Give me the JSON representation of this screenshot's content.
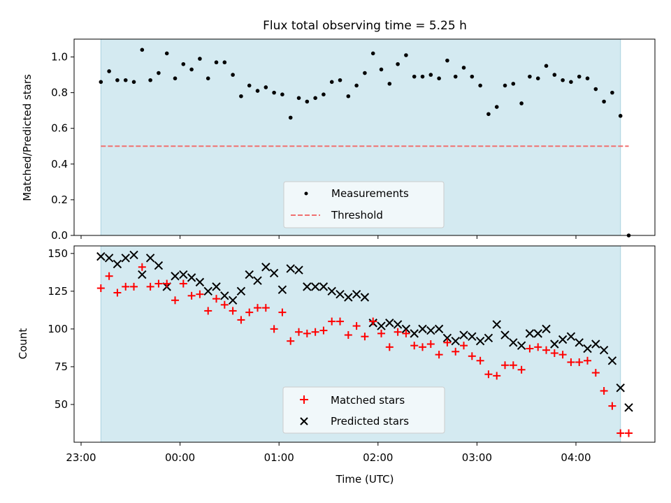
{
  "figure": {
    "title": "Flux total observing time = 5.25 h",
    "xlabel": "Time (UTC)",
    "xticks": [
      "23:00",
      "00:00",
      "01:00",
      "02:00",
      "03:00",
      "04:00"
    ],
    "shade_color": "#d4eaf1"
  },
  "chart_data": [
    {
      "type": "scatter",
      "ylabel": "Matched/Predicted stars",
      "ylim": [
        0,
        1.1
      ],
      "yticks": [
        "0.0",
        "0.2",
        "0.4",
        "0.6",
        "0.8",
        "1.0"
      ],
      "grid": false,
      "legend": "lower-center",
      "observing_window": [
        "23:12",
        "04:27"
      ],
      "threshold": {
        "name": "Threshold",
        "value": 0.5,
        "color": "#f07070",
        "style": "dashed"
      },
      "series": [
        {
          "name": "Measurements",
          "marker": "dot",
          "color": "#000000",
          "points": [
            [
              "23:12",
              0.86
            ],
            [
              "23:17",
              0.92
            ],
            [
              "23:22",
              0.87
            ],
            [
              "23:27",
              0.87
            ],
            [
              "23:32",
              0.86
            ],
            [
              "23:37",
              1.04
            ],
            [
              "23:42",
              0.87
            ],
            [
              "23:47",
              0.91
            ],
            [
              "23:52",
              1.02
            ],
            [
              "23:57",
              0.88
            ],
            [
              "00:02",
              0.96
            ],
            [
              "00:07",
              0.93
            ],
            [
              "00:12",
              0.99
            ],
            [
              "00:17",
              0.88
            ],
            [
              "00:22",
              0.97
            ],
            [
              "00:27",
              0.97
            ],
            [
              "00:32",
              0.9
            ],
            [
              "00:37",
              0.78
            ],
            [
              "00:42",
              0.84
            ],
            [
              "00:47",
              0.81
            ],
            [
              "00:52",
              0.83
            ],
            [
              "00:57",
              0.8
            ],
            [
              "01:02",
              0.79
            ],
            [
              "01:07",
              0.66
            ],
            [
              "01:12",
              0.77
            ],
            [
              "01:17",
              0.75
            ],
            [
              "01:22",
              0.77
            ],
            [
              "01:27",
              0.79
            ],
            [
              "01:32",
              0.86
            ],
            [
              "01:37",
              0.87
            ],
            [
              "01:42",
              0.78
            ],
            [
              "01:47",
              0.84
            ],
            [
              "01:52",
              0.91
            ],
            [
              "01:57",
              1.02
            ],
            [
              "02:02",
              0.93
            ],
            [
              "02:07",
              0.85
            ],
            [
              "02:12",
              0.96
            ],
            [
              "02:17",
              1.01
            ],
            [
              "02:22",
              0.89
            ],
            [
              "02:27",
              0.89
            ],
            [
              "02:32",
              0.9
            ],
            [
              "02:37",
              0.88
            ],
            [
              "02:42",
              0.98
            ],
            [
              "02:47",
              0.89
            ],
            [
              "02:52",
              0.94
            ],
            [
              "02:57",
              0.89
            ],
            [
              "03:02",
              0.84
            ],
            [
              "03:07",
              0.68
            ],
            [
              "03:12",
              0.72
            ],
            [
              "03:17",
              0.84
            ],
            [
              "03:22",
              0.85
            ],
            [
              "03:27",
              0.74
            ],
            [
              "03:32",
              0.89
            ],
            [
              "03:37",
              0.88
            ],
            [
              "03:42",
              0.95
            ],
            [
              "03:47",
              0.9
            ],
            [
              "03:52",
              0.87
            ],
            [
              "03:57",
              0.86
            ],
            [
              "04:02",
              0.89
            ],
            [
              "04:07",
              0.88
            ],
            [
              "04:12",
              0.82
            ],
            [
              "04:17",
              0.75
            ],
            [
              "04:22",
              0.8
            ],
            [
              "04:27",
              0.67
            ],
            [
              "04:32",
              0.0
            ]
          ]
        }
      ]
    },
    {
      "type": "scatter",
      "ylabel": "Count",
      "ylim": [
        25,
        155
      ],
      "yticks": [
        "50",
        "75",
        "100",
        "125",
        "150"
      ],
      "grid": false,
      "legend": "lower-center",
      "observing_window": [
        "23:12",
        "04:27"
      ],
      "series": [
        {
          "name": "Matched stars",
          "marker": "plus",
          "color": "#ff0000",
          "points": [
            [
              "23:12",
              127
            ],
            [
              "23:17",
              135
            ],
            [
              "23:22",
              124
            ],
            [
              "23:27",
              128
            ],
            [
              "23:32",
              128
            ],
            [
              "23:37",
              141
            ],
            [
              "23:42",
              128
            ],
            [
              "23:47",
              130
            ],
            [
              "23:52",
              130
            ],
            [
              "23:57",
              119
            ],
            [
              "00:02",
              130
            ],
            [
              "00:07",
              122
            ],
            [
              "00:12",
              123
            ],
            [
              "00:17",
              112
            ],
            [
              "00:22",
              120
            ],
            [
              "00:27",
              116
            ],
            [
              "00:32",
              112
            ],
            [
              "00:37",
              106
            ],
            [
              "00:42",
              111
            ],
            [
              "00:47",
              114
            ],
            [
              "00:52",
              114
            ],
            [
              "00:57",
              100
            ],
            [
              "01:02",
              111
            ],
            [
              "01:07",
              92
            ],
            [
              "01:12",
              98
            ],
            [
              "01:17",
              97
            ],
            [
              "01:22",
              98
            ],
            [
              "01:27",
              99
            ],
            [
              "01:32",
              105
            ],
            [
              "01:37",
              105
            ],
            [
              "01:42",
              96
            ],
            [
              "01:47",
              102
            ],
            [
              "01:52",
              95
            ],
            [
              "01:57",
              105
            ],
            [
              "02:02",
              97
            ],
            [
              "02:07",
              88
            ],
            [
              "02:12",
              98
            ],
            [
              "02:17",
              97
            ],
            [
              "02:22",
              89
            ],
            [
              "02:27",
              88
            ],
            [
              "02:32",
              90
            ],
            [
              "02:37",
              83
            ],
            [
              "02:42",
              91
            ],
            [
              "02:47",
              85
            ],
            [
              "02:52",
              89
            ],
            [
              "02:57",
              82
            ],
            [
              "03:02",
              79
            ],
            [
              "03:07",
              70
            ],
            [
              "03:12",
              69
            ],
            [
              "03:17",
              76
            ],
            [
              "03:22",
              76
            ],
            [
              "03:27",
              73
            ],
            [
              "03:32",
              87
            ],
            [
              "03:37",
              88
            ],
            [
              "03:42",
              86
            ],
            [
              "03:47",
              84
            ],
            [
              "03:52",
              83
            ],
            [
              "03:57",
              78
            ],
            [
              "04:02",
              78
            ],
            [
              "04:07",
              79
            ],
            [
              "04:12",
              71
            ],
            [
              "04:17",
              59
            ],
            [
              "04:22",
              49
            ],
            [
              "04:27",
              31
            ],
            [
              "04:32",
              31
            ]
          ]
        },
        {
          "name": "Predicted stars",
          "marker": "cross",
          "color": "#000000",
          "points": [
            [
              "23:12",
              148
            ],
            [
              "23:17",
              147
            ],
            [
              "23:22",
              143
            ],
            [
              "23:27",
              147
            ],
            [
              "23:32",
              149
            ],
            [
              "23:37",
              136
            ],
            [
              "23:42",
              147
            ],
            [
              "23:47",
              142
            ],
            [
              "23:52",
              128
            ],
            [
              "23:57",
              135
            ],
            [
              "00:02",
              136
            ],
            [
              "00:07",
              134
            ],
            [
              "00:12",
              131
            ],
            [
              "00:17",
              125
            ],
            [
              "00:22",
              128
            ],
            [
              "00:27",
              122
            ],
            [
              "00:32",
              119
            ],
            [
              "00:37",
              125
            ],
            [
              "00:42",
              136
            ],
            [
              "00:47",
              132
            ],
            [
              "00:52",
              141
            ],
            [
              "00:57",
              137
            ],
            [
              "01:02",
              126
            ],
            [
              "01:07",
              140
            ],
            [
              "01:12",
              139
            ],
            [
              "01:17",
              128
            ],
            [
              "01:22",
              128
            ],
            [
              "01:27",
              128
            ],
            [
              "01:32",
              125
            ],
            [
              "01:37",
              123
            ],
            [
              "01:42",
              121
            ],
            [
              "01:47",
              123
            ],
            [
              "01:52",
              121
            ],
            [
              "01:57",
              104
            ],
            [
              "02:02",
              102
            ],
            [
              "02:07",
              104
            ],
            [
              "02:12",
              103
            ],
            [
              "02:17",
              100
            ],
            [
              "02:22",
              97
            ],
            [
              "02:27",
              100
            ],
            [
              "02:32",
              99
            ],
            [
              "02:37",
              100
            ],
            [
              "02:42",
              94
            ],
            [
              "02:47",
              92
            ],
            [
              "02:52",
              96
            ],
            [
              "02:57",
              95
            ],
            [
              "03:02",
              92
            ],
            [
              "03:07",
              94
            ],
            [
              "03:12",
              103
            ],
            [
              "03:17",
              96
            ],
            [
              "03:22",
              91
            ],
            [
              "03:27",
              89
            ],
            [
              "03:32",
              97
            ],
            [
              "03:37",
              97
            ],
            [
              "03:42",
              100
            ],
            [
              "03:47",
              90
            ],
            [
              "03:52",
              93
            ],
            [
              "03:57",
              95
            ],
            [
              "04:02",
              91
            ],
            [
              "04:07",
              87
            ],
            [
              "04:12",
              90
            ],
            [
              "04:17",
              86
            ],
            [
              "04:22",
              79
            ],
            [
              "04:27",
              61
            ],
            [
              "04:32",
              48
            ]
          ]
        }
      ]
    }
  ]
}
